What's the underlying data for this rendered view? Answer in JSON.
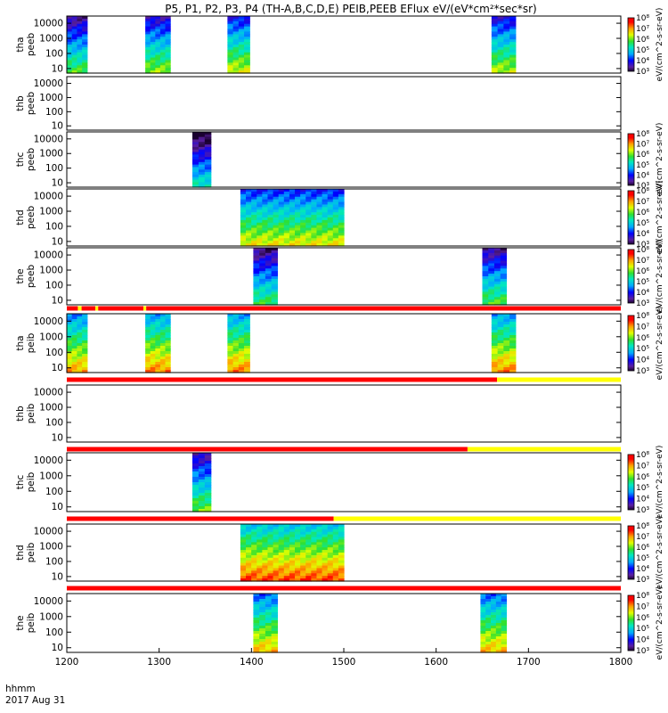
{
  "chart_data": {
    "type": "heatmap",
    "title": "P5, P1, P2, P3, P4 (TH-A,B,C,D,E) PEIB,PEEB EFlux eV/(eV*cm²*sec*sr)",
    "xlabel": "hhmm",
    "date_label": "2017 Aug 31",
    "xlim": [
      1200,
      1800
    ],
    "x_ticks": [
      "1200",
      "1300",
      "1400",
      "1500",
      "1600",
      "1700",
      "1800"
    ],
    "y_scale": "log",
    "ylim": [
      5,
      30000
    ],
    "y_ticks": [
      "10",
      "100",
      "1000",
      "10000"
    ],
    "colorbar_scale": "log",
    "colorbar_ticks": [
      "10³",
      "10⁴",
      "10⁵",
      "10⁶",
      "10⁷",
      "10⁸"
    ],
    "colorbar_units": "eV/(cm^2-s-sr-eV)",
    "state_bar_colors": {
      "red": "#ff0000",
      "yellow": "#ffff00"
    },
    "panels": [
      {
        "id": "tha-peeb",
        "label": [
          "tha",
          "peeb"
        ],
        "bursts": [
          [
            1200,
            1222,
            0.35
          ],
          [
            1285,
            1312,
            0.45
          ],
          [
            1374,
            1398,
            0.55
          ],
          [
            1660,
            1686,
            0.5
          ]
        ],
        "colorbar": true
      },
      {
        "id": "thb-peeb",
        "label": [
          "thb",
          "peeb"
        ],
        "bursts": [],
        "colorbar": false
      },
      {
        "id": "thc-peeb",
        "label": [
          "thc",
          "peeb"
        ],
        "bursts": [
          [
            1336,
            1356,
            0.15
          ]
        ],
        "colorbar": true
      },
      {
        "id": "thd-peeb",
        "label": [
          "thd",
          "peeb"
        ],
        "bursts": [
          [
            1388,
            1500,
            0.6
          ]
        ],
        "colorbar": true
      },
      {
        "id": "the-peeb",
        "label": [
          "the",
          "peeb"
        ],
        "bursts": [
          [
            1402,
            1428,
            0.3
          ],
          [
            1650,
            1676,
            0.35
          ]
        ],
        "colorbar": true
      },
      {
        "id": "tha-peib",
        "label": [
          "tha",
          "peib"
        ],
        "bursts": [
          [
            1200,
            1222,
            0.75
          ],
          [
            1285,
            1312,
            0.8
          ],
          [
            1374,
            1398,
            0.8
          ],
          [
            1660,
            1686,
            0.8
          ]
        ],
        "colorbar": true,
        "state_bar": [
          [
            1200,
            1212,
            "red"
          ],
          [
            1212,
            1216,
            "yellow"
          ],
          [
            1216,
            1231,
            "red"
          ],
          [
            1231,
            1234,
            "yellow"
          ],
          [
            1234,
            1283,
            "red"
          ],
          [
            1283,
            1286,
            "yellow"
          ],
          [
            1286,
            1800,
            "red"
          ]
        ]
      },
      {
        "id": "thb-peib",
        "label": [
          "thb",
          "peib"
        ],
        "bursts": [],
        "colorbar": false,
        "state_bar": [
          [
            1200,
            1666,
            "red"
          ],
          [
            1666,
            1800,
            "yellow"
          ]
        ]
      },
      {
        "id": "thc-peib",
        "label": [
          "thc",
          "peib"
        ],
        "bursts": [
          [
            1336,
            1356,
            0.4
          ]
        ],
        "colorbar": true,
        "state_bar": [
          [
            1200,
            1634,
            "red"
          ],
          [
            1634,
            1800,
            "yellow"
          ]
        ]
      },
      {
        "id": "thd-peib",
        "label": [
          "thd",
          "peib"
        ],
        "bursts": [
          [
            1388,
            1500,
            0.9
          ]
        ],
        "colorbar": true,
        "state_bar": [
          [
            1200,
            1489,
            "red"
          ],
          [
            1489,
            1800,
            "yellow"
          ]
        ]
      },
      {
        "id": "the-peib",
        "label": [
          "the",
          "peib"
        ],
        "bursts": [
          [
            1402,
            1428,
            0.7
          ],
          [
            1648,
            1676,
            0.7
          ]
        ],
        "colorbar": true,
        "state_bar": [
          [
            1200,
            1800,
            "red"
          ]
        ]
      }
    ]
  }
}
